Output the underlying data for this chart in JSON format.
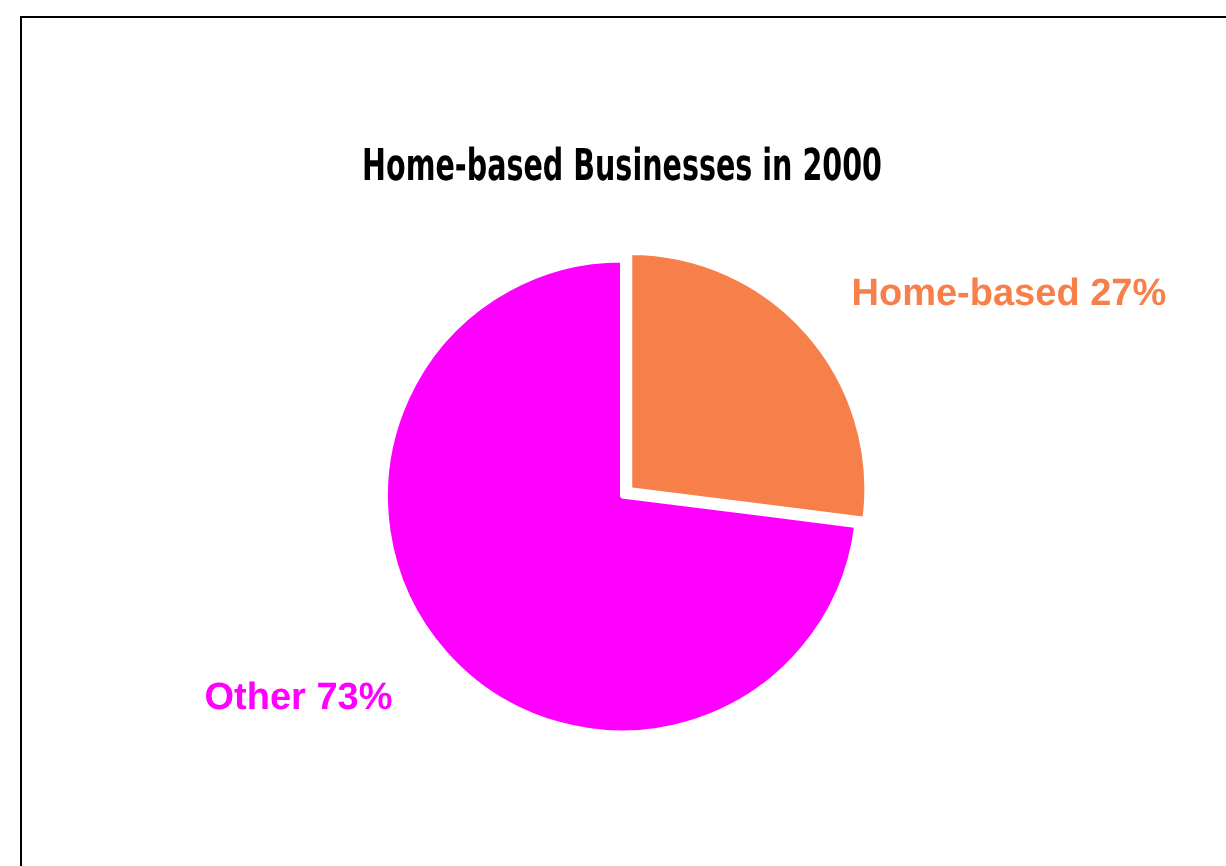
{
  "chart_data": {
    "type": "pie",
    "title": "Home-based Businesses in 2000",
    "categories": [
      "Home-based",
      "Other"
    ],
    "values": [
      27,
      73
    ],
    "colors": [
      "#f77f4a",
      "#ff00ff"
    ],
    "value_labels": [
      "27%",
      "73%"
    ],
    "legend": false
  }
}
